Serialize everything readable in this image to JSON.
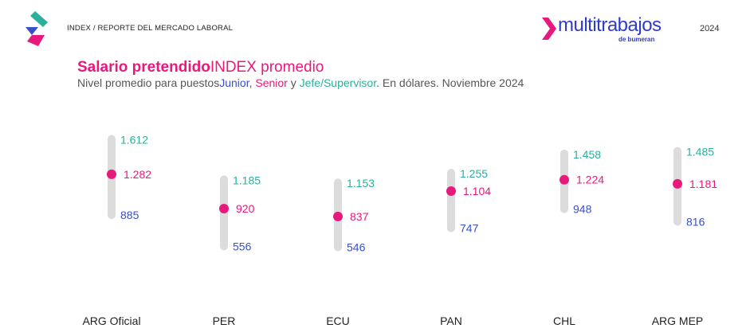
{
  "header": {
    "breadcrumb": "INDEX / REPORTE DEL MERCADO LABORAL",
    "brand_name": "multitrabajos",
    "brand_sub": "de bumeran",
    "year": "2024"
  },
  "title": {
    "bold": "Salario pretendido",
    "rest": "INDEX promedio"
  },
  "subtitle": {
    "prefix": "Nivel promedio para puestos",
    "junior": "Junior",
    "sep1": ", ",
    "senior": "Senior",
    "sep2": " y ",
    "jefe": "Jefe/Supervisor",
    "suffix": ". En dólares. Noviembre 2024"
  },
  "colors": {
    "jefe": "#2ab09c",
    "senior": "#e8197c",
    "junior": "#3a50c8",
    "track": "#dcdcdc"
  },
  "chart_data": {
    "type": "range",
    "categories": [
      "ARG Oficial",
      "PER",
      "ECU",
      "PAN",
      "CHL",
      "ARG MEP"
    ],
    "series": [
      {
        "name": "Jefe/Supervisor",
        "values": [
          1612,
          1185,
          1153,
          1255,
          1458,
          1485
        ]
      },
      {
        "name": "Senior",
        "values": [
          1282,
          920,
          837,
          1104,
          1224,
          1181
        ]
      },
      {
        "name": "Junior",
        "values": [
          885,
          556,
          546,
          747,
          948,
          816
        ]
      }
    ],
    "labels": {
      "jefe": [
        "1.612",
        "1.185",
        "1.153",
        "1.255",
        "1.458",
        "1.485"
      ],
      "senior": [
        "1.282",
        "920",
        "837",
        "1.104",
        "1.224",
        "1.181"
      ],
      "junior": [
        "885",
        "556",
        "546",
        "747",
        "948",
        "816"
      ]
    },
    "ylim": [
      500,
      1650
    ],
    "grid": false
  }
}
